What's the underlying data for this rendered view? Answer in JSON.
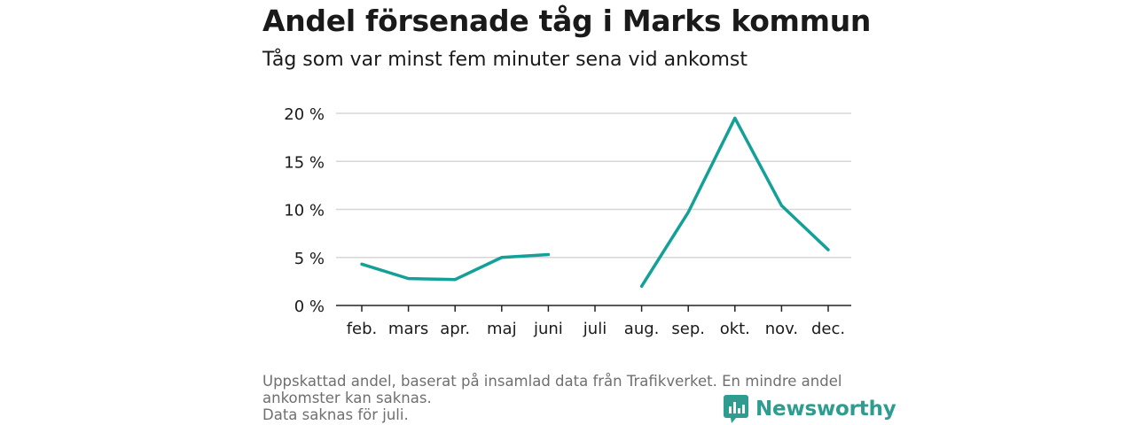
{
  "title": "Andel försenade tåg i Marks kommun",
  "subtitle": "Tåg som var minst fem minuter sena vid ankomst",
  "footer": {
    "line1": "Uppskattad andel, baserat på insamlad data från Trafikverket. En mindre andel ankomster kan saknas.",
    "line2": "Data saknas för juli."
  },
  "logo": {
    "text": "Newsworthy",
    "color": "#2f9c90"
  },
  "chart_data": {
    "type": "line",
    "categories": [
      "feb.",
      "mars",
      "apr.",
      "maj",
      "juni",
      "juli",
      "aug.",
      "sep.",
      "okt.",
      "nov.",
      "dec."
    ],
    "series": [
      {
        "values": [
          4.3,
          2.8,
          2.7,
          5.0,
          5.3,
          null,
          2.0,
          9.7,
          19.5,
          10.4,
          5.8
        ],
        "color": "#13a098"
      }
    ],
    "ylim": [
      0,
      20
    ],
    "yticks": [
      0,
      5,
      10,
      15,
      20
    ],
    "ytick_labels": [
      "0 %",
      "5 %",
      "10 %",
      "15 %",
      "20 %"
    ],
    "grid": true
  }
}
